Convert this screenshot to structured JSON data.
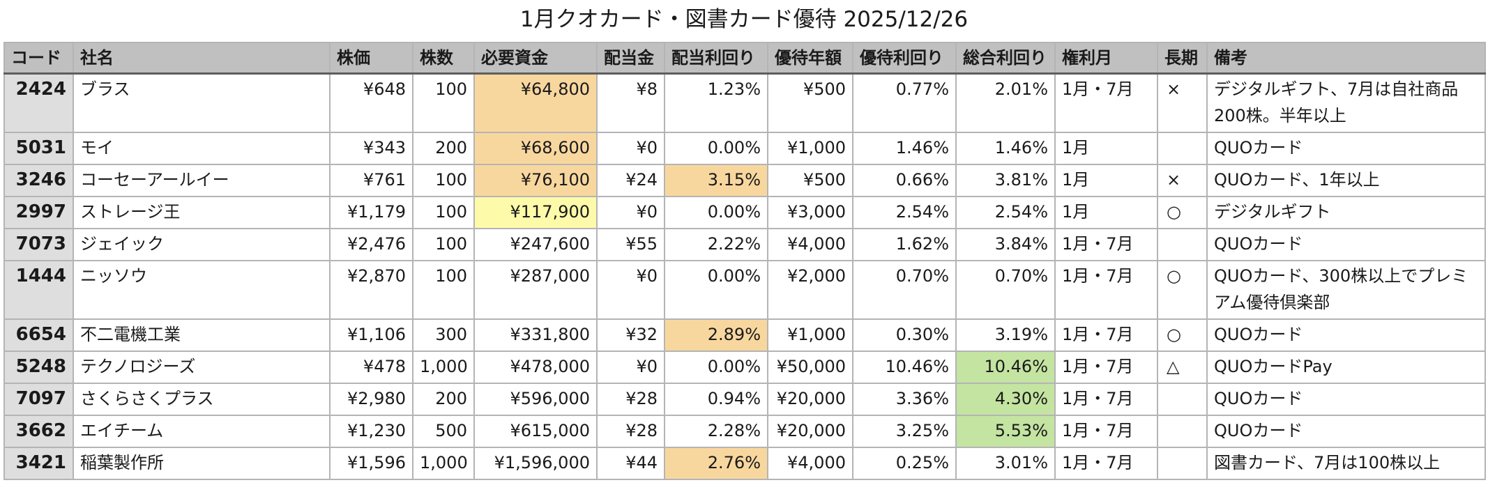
{
  "title": "1月クオカード・図書カード優待 2025/12/26",
  "colors": {
    "header_bg": "#c0c0c0",
    "code_bg": "#dedede",
    "highlight_orange": "#f8d79f",
    "highlight_yellow": "#fdfaa9",
    "highlight_green": "#c4e4a1"
  },
  "table": {
    "headers": [
      "コード",
      "社名",
      "株価",
      "株数",
      "必要資金",
      "配当金",
      "配当利回り",
      "優待年額",
      "優待利回り",
      "総合利回り",
      "権利月",
      "長期",
      "備考"
    ],
    "rows": [
      {
        "code": "2424",
        "name": "ブラス",
        "price": "¥648",
        "shares": "100",
        "capital": "¥64,800",
        "dividend": "¥8",
        "div_yield": "1.23%",
        "benefit": "¥500",
        "benefit_yield": "0.77%",
        "total_yield": "2.01%",
        "month": "1月・7月",
        "long_term": "×",
        "note": "デジタルギフト、7月は自社商品200株。半年以上",
        "hl_capital": "orange",
        "hl_div_yield": "",
        "hl_total": ""
      },
      {
        "code": "5031",
        "name": "モイ",
        "price": "¥343",
        "shares": "200",
        "capital": "¥68,600",
        "dividend": "¥0",
        "div_yield": "0.00%",
        "benefit": "¥1,000",
        "benefit_yield": "1.46%",
        "total_yield": "1.46%",
        "month": "1月",
        "long_term": "",
        "note": "QUOカード",
        "hl_capital": "orange",
        "hl_div_yield": "",
        "hl_total": ""
      },
      {
        "code": "3246",
        "name": "コーセーアールイー",
        "price": "¥761",
        "shares": "100",
        "capital": "¥76,100",
        "dividend": "¥24",
        "div_yield": "3.15%",
        "benefit": "¥500",
        "benefit_yield": "0.66%",
        "total_yield": "3.81%",
        "month": "1月",
        "long_term": "×",
        "note": "QUOカード、1年以上",
        "hl_capital": "orange",
        "hl_div_yield": "orange",
        "hl_total": ""
      },
      {
        "code": "2997",
        "name": "ストレージ王",
        "price": "¥1,179",
        "shares": "100",
        "capital": "¥117,900",
        "dividend": "¥0",
        "div_yield": "0.00%",
        "benefit": "¥3,000",
        "benefit_yield": "2.54%",
        "total_yield": "2.54%",
        "month": "1月",
        "long_term": "○",
        "note": "デジタルギフト",
        "hl_capital": "yellow",
        "hl_div_yield": "",
        "hl_total": ""
      },
      {
        "code": "7073",
        "name": "ジェイック",
        "price": "¥2,476",
        "shares": "100",
        "capital": "¥247,600",
        "dividend": "¥55",
        "div_yield": "2.22%",
        "benefit": "¥4,000",
        "benefit_yield": "1.62%",
        "total_yield": "3.84%",
        "month": "1月・7月",
        "long_term": "",
        "note": "QUOカード",
        "hl_capital": "",
        "hl_div_yield": "",
        "hl_total": ""
      },
      {
        "code": "1444",
        "name": "ニッソウ",
        "price": "¥2,870",
        "shares": "100",
        "capital": "¥287,000",
        "dividend": "¥0",
        "div_yield": "0.00%",
        "benefit": "¥2,000",
        "benefit_yield": "0.70%",
        "total_yield": "0.70%",
        "month": "1月・7月",
        "long_term": "○",
        "note": "QUOカード、300株以上でプレミアム優待倶楽部",
        "hl_capital": "",
        "hl_div_yield": "",
        "hl_total": ""
      },
      {
        "code": "6654",
        "name": "不二電機工業",
        "price": "¥1,106",
        "shares": "300",
        "capital": "¥331,800",
        "dividend": "¥32",
        "div_yield": "2.89%",
        "benefit": "¥1,000",
        "benefit_yield": "0.30%",
        "total_yield": "3.19%",
        "month": "1月・7月",
        "long_term": "○",
        "note": "QUOカード",
        "hl_capital": "",
        "hl_div_yield": "orange",
        "hl_total": ""
      },
      {
        "code": "5248",
        "name": "テクノロジーズ",
        "price": "¥478",
        "shares": "1,000",
        "capital": "¥478,000",
        "dividend": "¥0",
        "div_yield": "0.00%",
        "benefit": "¥50,000",
        "benefit_yield": "10.46%",
        "total_yield": "10.46%",
        "month": "1月・7月",
        "long_term": "△",
        "note": "QUOカードPay",
        "hl_capital": "",
        "hl_div_yield": "",
        "hl_total": "green"
      },
      {
        "code": "7097",
        "name": "さくらさくプラス",
        "price": "¥2,980",
        "shares": "200",
        "capital": "¥596,000",
        "dividend": "¥28",
        "div_yield": "0.94%",
        "benefit": "¥20,000",
        "benefit_yield": "3.36%",
        "total_yield": "4.30%",
        "month": "1月・7月",
        "long_term": "",
        "note": "QUOカード",
        "hl_capital": "",
        "hl_div_yield": "",
        "hl_total": "green"
      },
      {
        "code": "3662",
        "name": "エイチーム",
        "price": "¥1,230",
        "shares": "500",
        "capital": "¥615,000",
        "dividend": "¥28",
        "div_yield": "2.28%",
        "benefit": "¥20,000",
        "benefit_yield": "3.25%",
        "total_yield": "5.53%",
        "month": "1月・7月",
        "long_term": "",
        "note": "QUOカード",
        "hl_capital": "",
        "hl_div_yield": "",
        "hl_total": "green"
      },
      {
        "code": "3421",
        "name": "稲葉製作所",
        "price": "¥1,596",
        "shares": "1,000",
        "capital": "¥1,596,000",
        "dividend": "¥44",
        "div_yield": "2.76%",
        "benefit": "¥4,000",
        "benefit_yield": "0.25%",
        "total_yield": "3.01%",
        "month": "1月・7月",
        "long_term": "",
        "note": "図書カード、7月は100株以上",
        "hl_capital": "",
        "hl_div_yield": "orange",
        "hl_total": ""
      }
    ]
  }
}
